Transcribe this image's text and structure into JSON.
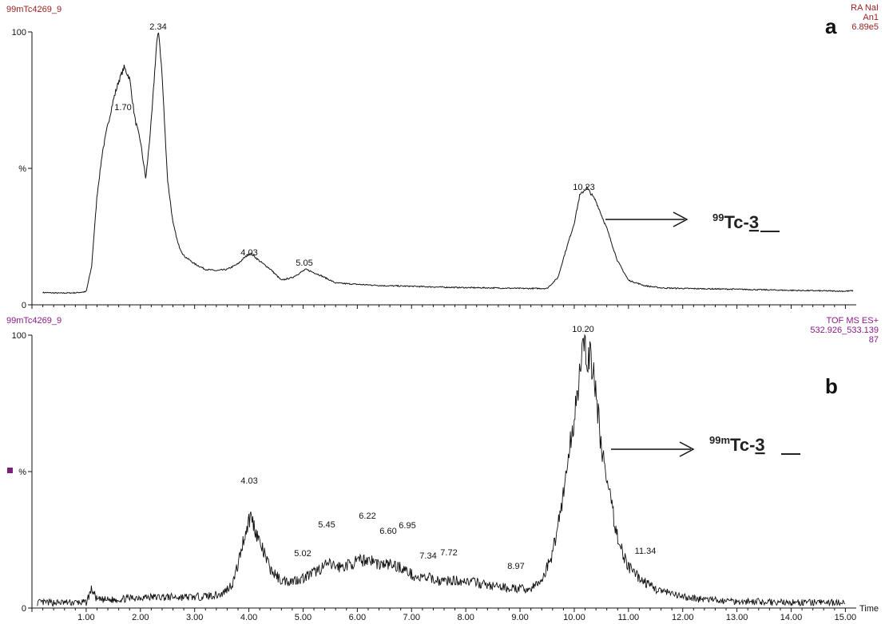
{
  "chart_data": [
    {
      "type": "line",
      "panel": "a",
      "header_left": "99mTc4269_9",
      "header_right": [
        "RA NaI",
        "An1",
        "6.89e5"
      ],
      "y_tick_labels": [
        "100",
        "%",
        "0"
      ],
      "ylim": [
        0,
        100
      ],
      "xlim": [
        0.0,
        15.2
      ],
      "peak_labels": [
        "1.70",
        "2.34",
        "4.03",
        "5.05",
        "10.23"
      ],
      "annotation": {
        "superscript": "99",
        "text_prefix": "Tc-",
        "text_underlined": "3"
      },
      "colors": {
        "header": "#9b1c1c",
        "trace": "#111111"
      },
      "x": [
        0.2,
        0.5,
        0.8,
        1.0,
        1.1,
        1.2,
        1.3,
        1.4,
        1.5,
        1.6,
        1.7,
        1.8,
        1.9,
        2.0,
        2.1,
        2.2,
        2.3,
        2.34,
        2.4,
        2.5,
        2.6,
        2.7,
        2.8,
        3.0,
        3.2,
        3.4,
        3.6,
        3.8,
        3.9,
        4.03,
        4.2,
        4.4,
        4.6,
        4.8,
        5.05,
        5.3,
        5.6,
        6.0,
        6.5,
        7.0,
        7.5,
        8.0,
        8.5,
        9.0,
        9.5,
        9.7,
        9.8,
        10.0,
        10.1,
        10.23,
        10.4,
        10.6,
        10.8,
        11.0,
        11.3,
        11.6,
        12.0,
        13.0,
        14.0,
        15.0,
        15.15
      ],
      "y": [
        4.5,
        4.3,
        4.4,
        4.8,
        14,
        40,
        56,
        66,
        75,
        82,
        87,
        83,
        68,
        60,
        46,
        67,
        96,
        100,
        84,
        46,
        30,
        22,
        18,
        15,
        13,
        12.5,
        13,
        15,
        17,
        19,
        16,
        13,
        9,
        10,
        13,
        11,
        8,
        7.5,
        7,
        6.8,
        6.5,
        6.3,
        6.2,
        6,
        6,
        10,
        17,
        30,
        40,
        43,
        38,
        28,
        16,
        9,
        7,
        6.2,
        6.0,
        5.7,
        5.3,
        5.0,
        5.2
      ]
    },
    {
      "type": "line",
      "panel": "b",
      "header_left": "99mTc4269_9",
      "header_right": [
        "TOF MS ES+",
        "532.926_533.139",
        "87"
      ],
      "y_tick_labels": [
        "100",
        "%",
        "0"
      ],
      "ylim": [
        0,
        100
      ],
      "xlim": [
        0.0,
        15.2
      ],
      "xlabel": "Time",
      "x_ticks": [
        "1.00",
        "2.00",
        "3.00",
        "4.00",
        "5.00",
        "6.00",
        "7.00",
        "8.00",
        "9.00",
        "10.00",
        "11.00",
        "12.00",
        "13.00",
        "14.00",
        "15.00"
      ],
      "peak_labels": [
        "4.03",
        "5.02",
        "5.45",
        "6.22",
        "6.60",
        "6.95",
        "7.34",
        "7.72",
        "8.97",
        "10.20",
        "11.34"
      ],
      "annotation": {
        "superscript": "99m",
        "text_prefix": "Tc-",
        "text_underlined": "3"
      },
      "colors": {
        "header": "#8b1a8b",
        "trace": "#111111",
        "marker": "#7a1f7a"
      },
      "x": [
        0.1,
        0.5,
        1.0,
        1.1,
        1.2,
        1.5,
        2.0,
        2.5,
        3.0,
        3.5,
        3.7,
        3.8,
        3.9,
        4.03,
        4.2,
        4.4,
        4.6,
        4.8,
        5.0,
        5.2,
        5.45,
        5.7,
        6.0,
        6.22,
        6.4,
        6.6,
        6.8,
        6.95,
        7.1,
        7.34,
        7.5,
        7.72,
        8.0,
        8.5,
        8.97,
        9.2,
        9.4,
        9.6,
        9.8,
        10.0,
        10.1,
        10.2,
        10.3,
        10.4,
        10.5,
        10.6,
        10.7,
        10.8,
        10.9,
        11.0,
        11.2,
        11.34,
        11.5,
        11.8,
        12.0,
        12.5,
        13.0,
        14.0,
        15.0
      ],
      "y": [
        2,
        2,
        2,
        7,
        3,
        3,
        4,
        4,
        4,
        5,
        9,
        16,
        25,
        34,
        24,
        14,
        10,
        10,
        11,
        13,
        16,
        15,
        17,
        18,
        16,
        16,
        15,
        13,
        11,
        11,
        10,
        10,
        10,
        8,
        7,
        7,
        10,
        20,
        42,
        70,
        88,
        94,
        92,
        78,
        60,
        46,
        36,
        26,
        20,
        15,
        11,
        9,
        7,
        5,
        4,
        3,
        2.5,
        2,
        2
      ]
    }
  ]
}
